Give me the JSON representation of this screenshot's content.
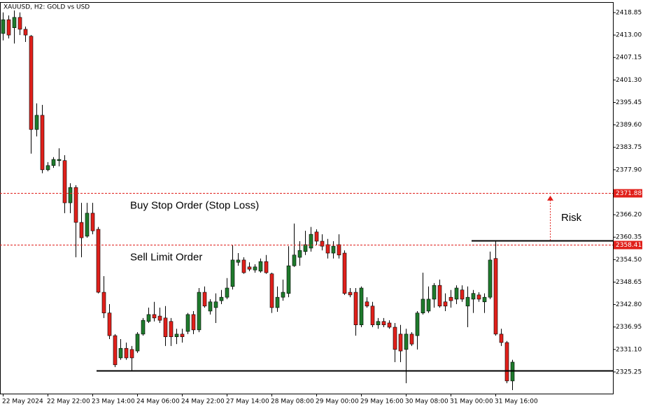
{
  "chart_data": {
    "type": "candlestick",
    "title": "XAUUSD, H2:  GOLD vs USD",
    "up_color": "#1e7a2c",
    "down_color": "#e0201b",
    "grid": false,
    "ylim": [
      2319.6,
      2421.58
    ],
    "yticks": [
      2418.85,
      {
        "value": 2413.0,
        "label": "2413.00"
      },
      2407.15,
      {
        "value": 2401.3,
        "label": "2401.30"
      },
      2395.45,
      {
        "value": 2389.6,
        "label": "2389.60"
      },
      2383.75,
      {
        "value": 2377.9,
        "label": "2377.90"
      },
      {
        "value": 2366.2,
        "label": "2366.20"
      },
      2360.35,
      {
        "value": 2354.5,
        "label": "2354.50"
      },
      2348.65,
      {
        "value": 2342.8,
        "label": "2342.80"
      },
      2336.95,
      {
        "value": 2331.1,
        "label": "2331.10"
      },
      2325.25
    ],
    "categories": [
      "22 May 2024",
      null,
      null,
      null,
      null,
      null,
      null,
      null,
      "22 May 22:00",
      null,
      null,
      null,
      null,
      null,
      null,
      null,
      "23 May 14:00",
      null,
      null,
      null,
      null,
      null,
      null,
      null,
      "24 May 06:00",
      null,
      null,
      null,
      null,
      null,
      null,
      null,
      "24 May 22:00",
      null,
      null,
      null,
      null,
      null,
      null,
      null,
      "27 May 14:00",
      null,
      null,
      null,
      null,
      null,
      null,
      null,
      "28 May 08:00",
      null,
      null,
      null,
      null,
      null,
      null,
      null,
      "29 May 00:00",
      null,
      null,
      null,
      null,
      null,
      null,
      null,
      "29 May 16:00",
      null,
      null,
      null,
      null,
      null,
      null,
      null,
      "30 May 08:00",
      null,
      null,
      null,
      null,
      null,
      null,
      null,
      "31 May 00:00",
      null,
      null,
      null,
      null,
      null,
      null,
      null,
      "31 May 16:00",
      null,
      null,
      null
    ],
    "open": [
      2413.4,
      2417.0,
      2414.9,
      2417.6,
      2414.5,
      2412.7,
      2388.4,
      2392.1,
      2377.9,
      2379.0,
      2380.3,
      2380.3,
      2369.3,
      2373.3,
      2364.2,
      2360.6,
      2366.6,
      2362.4,
      2346.0,
      2340.6,
      2334.7,
      2328.9,
      2331.4,
      2331.1,
      2330.7,
      2335.1,
      2338.4,
      2340.2,
      2339.8,
      2339.3,
      2338.4,
      2334.4,
      2335.1,
      2335.8,
      2340.2,
      2336.2,
      2346.0,
      2341.1,
      2342.0,
      2343.8,
      2344.7,
      2347.5,
      2353.8,
      2354.4,
      2352.6,
      2351.8,
      2351.5,
      2354.0,
      2350.8,
      2342.0,
      2344.7,
      2345.7,
      2352.9,
      2355.1,
      2356.6,
      2357.5,
      2361.7,
      2359.3,
      2358.4,
      2356.2,
      2358.4,
      2356.2,
      2346.0,
      2346.0,
      2337.5,
      2343.5,
      2342.4,
      2337.5,
      2338.4,
      2338.0,
      2336.9,
      2335.1,
      2331.1,
      2335.1,
      2334.7,
      2340.6,
      2341.1,
      2344.2,
      2347.8,
      2343.5,
      2344.7,
      2344.2,
      2346.6,
      2342.4,
      2344.2,
      2345.3,
      2343.5,
      2344.7,
      2354.8,
      2335.1,
      2332.9,
      2322.9
    ],
    "high": [
      2418.9,
      2418.1,
      2419.4,
      2418.9,
      2415.2,
      2413.0,
      2395.2,
      2394.8,
      2379.9,
      2381.2,
      2383.5,
      2381.7,
      2374.4,
      2373.9,
      2369.3,
      2369.3,
      2369.3,
      2363.0,
      2350.2,
      2342.9,
      2335.1,
      2333.8,
      2332.9,
      2332.0,
      2335.6,
      2339.3,
      2342.0,
      2343.5,
      2342.0,
      2342.4,
      2339.3,
      2336.5,
      2336.5,
      2340.6,
      2341.1,
      2347.1,
      2347.5,
      2344.2,
      2345.7,
      2346.6,
      2349.7,
      2358.4,
      2356.2,
      2355.1,
      2353.8,
      2353.3,
      2354.8,
      2355.7,
      2351.1,
      2347.5,
      2349.3,
      2358.0,
      2363.9,
      2359.3,
      2362.0,
      2363.0,
      2362.4,
      2361.1,
      2359.9,
      2359.3,
      2361.1,
      2356.9,
      2347.1,
      2347.1,
      2347.5,
      2344.7,
      2343.5,
      2339.3,
      2339.3,
      2338.7,
      2338.0,
      2337.5,
      2336.5,
      2335.6,
      2341.1,
      2351.1,
      2347.5,
      2348.4,
      2349.3,
      2345.7,
      2346.6,
      2347.8,
      2347.8,
      2347.5,
      2346.6,
      2346.0,
      2345.7,
      2356.6,
      2359.3,
      2336.5,
      2333.3,
      2328.4
    ],
    "low": [
      2411.6,
      2412.1,
      2410.8,
      2413.0,
      2411.2,
      2382.1,
      2386.6,
      2377.0,
      2377.5,
      2378.4,
      2378.8,
      2366.6,
      2366.6,
      2355.1,
      2355.1,
      2360.2,
      2361.1,
      2345.7,
      2339.3,
      2333.8,
      2326.5,
      2328.4,
      2328.4,
      2325.6,
      2330.2,
      2334.7,
      2338.0,
      2338.4,
      2338.0,
      2332.0,
      2332.0,
      2332.5,
      2332.9,
      2335.1,
      2335.1,
      2335.6,
      2342.0,
      2340.2,
      2338.0,
      2342.9,
      2344.2,
      2346.7,
      2352.9,
      2350.8,
      2351.5,
      2351.1,
      2351.1,
      2350.8,
      2340.6,
      2340.9,
      2343.8,
      2344.7,
      2352.6,
      2352.9,
      2355.7,
      2356.6,
      2358.4,
      2356.9,
      2354.8,
      2354.8,
      2354.8,
      2345.3,
      2344.7,
      2334.7,
      2336.9,
      2342.0,
      2336.9,
      2336.5,
      2336.9,
      2336.5,
      2327.8,
      2327.8,
      2322.3,
      2332.0,
      2331.1,
      2340.2,
      2340.6,
      2342.0,
      2342.0,
      2341.1,
      2342.0,
      2342.9,
      2343.5,
      2336.9,
      2340.6,
      2343.5,
      2340.6,
      2344.2,
      2334.7,
      2332.0,
      2322.3,
      2320.5
    ],
    "close": [
      2417.0,
      2413.0,
      2417.6,
      2414.5,
      2413.0,
      2388.4,
      2392.1,
      2377.9,
      2379.0,
      2380.6,
      2380.6,
      2369.3,
      2373.3,
      2364.2,
      2360.2,
      2366.6,
      2362.0,
      2346.0,
      2340.6,
      2334.7,
      2327.1,
      2331.4,
      2328.9,
      2328.9,
      2335.1,
      2338.7,
      2340.2,
      2339.3,
      2338.7,
      2334.4,
      2334.4,
      2335.1,
      2334.4,
      2340.2,
      2336.2,
      2346.0,
      2342.4,
      2343.5,
      2343.5,
      2344.7,
      2347.1,
      2354.4,
      2354.4,
      2351.1,
      2352.0,
      2352.6,
      2354.0,
      2351.1,
      2342.0,
      2344.7,
      2346.0,
      2352.9,
      2355.7,
      2356.9,
      2358.4,
      2361.1,
      2359.3,
      2358.0,
      2356.2,
      2358.0,
      2355.7,
      2345.7,
      2345.3,
      2337.5,
      2347.1,
      2342.4,
      2337.5,
      2338.4,
      2337.5,
      2336.9,
      2331.1,
      2330.7,
      2335.1,
      2332.5,
      2340.6,
      2344.2,
      2344.2,
      2347.8,
      2342.4,
      2342.4,
      2343.8,
      2347.1,
      2344.2,
      2344.7,
      2345.7,
      2344.2,
      2344.7,
      2354.4,
      2335.1,
      2332.9,
      2322.9,
      2327.8
    ],
    "order_lines": [
      {
        "price": 2371.88,
        "label": "Buy Stop Order (Stop Loss)"
      },
      {
        "price": 2358.41,
        "label": "Sell Limit Order"
      }
    ],
    "order_color": "#e0201b",
    "trend_lines": [
      {
        "price": 2325.6,
        "start": 17
      },
      {
        "price": 2359.5,
        "start": 84
      }
    ],
    "risk": {
      "label": "Risk"
    }
  }
}
